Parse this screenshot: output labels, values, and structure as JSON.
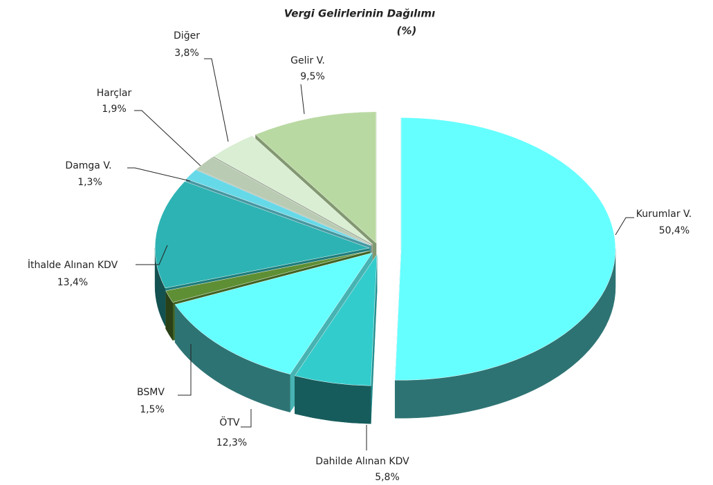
{
  "chart_data": {
    "type": "pie",
    "title": "Vergi Gelirlerinin Dağılımı",
    "subtitle": "(%)",
    "categories": [
      "Kurumlar V.",
      "Dahilde Alınan KDV",
      "ÖTV",
      "BSMV",
      "İthalde Alınan KDV",
      "Damga V.",
      "Harçlar",
      "Diğer",
      "Gelir V."
    ],
    "values": [
      50.4,
      5.8,
      12.3,
      1.5,
      13.4,
      1.3,
      1.9,
      3.8,
      9.5
    ],
    "value_labels": [
      "50,4%",
      "5,8%",
      "12,3%",
      "1,5%",
      "13,4%",
      "1,3%",
      "1,9%",
      "3,8%",
      "9,5%"
    ],
    "colors": [
      "#66ffff",
      "#33cccc",
      "#66ffff",
      "#5e8f34",
      "#2db3b3",
      "#66d9e8",
      "#b9cbb2",
      "#d9eed2",
      "#b9d9a2"
    ]
  }
}
